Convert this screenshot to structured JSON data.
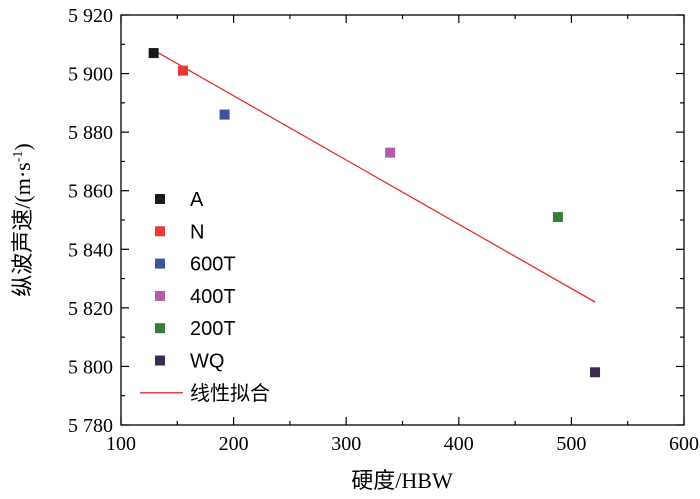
{
  "chart_data": {
    "type": "scatter",
    "title": "",
    "xlabel": "硬度/HBW",
    "ylabel_main": "纵波声速/(m·s",
    "ylabel_sup": "-1",
    "ylabel_close": ")",
    "xlim": [
      100,
      600
    ],
    "ylim": [
      5780,
      5920
    ],
    "x_ticks": [
      100,
      200,
      300,
      400,
      500,
      600
    ],
    "x_tick_labels": [
      "100",
      "200",
      "300",
      "400",
      "500",
      "600"
    ],
    "y_ticks": [
      5780,
      5800,
      5820,
      5840,
      5860,
      5880,
      5900,
      5920
    ],
    "y_tick_labels": [
      "5 780",
      "5 800",
      "5 820",
      "5 840",
      "5 860",
      "5 880",
      "5 900",
      "5 920"
    ],
    "series": [
      {
        "name": "A",
        "color": "#1a1a1a",
        "x": 129,
        "y": 5907
      },
      {
        "name": "N",
        "color": "#e63b32",
        "x": 155,
        "y": 5901
      },
      {
        "name": "600T",
        "color": "#3e52a0",
        "x": 192,
        "y": 5886
      },
      {
        "name": "400T",
        "color": "#b35da6",
        "x": 339,
        "y": 5873
      },
      {
        "name": "200T",
        "color": "#3b7a3b",
        "x": 488,
        "y": 5851
      },
      {
        "name": "WQ",
        "color": "#3a2b4f",
        "x": 521,
        "y": 5798
      }
    ],
    "fit": {
      "name": "线性拟合",
      "color": "#e03030",
      "x": [
        129,
        521
      ],
      "y": [
        5908,
        5822
      ]
    },
    "legend_position": "left-middle"
  }
}
